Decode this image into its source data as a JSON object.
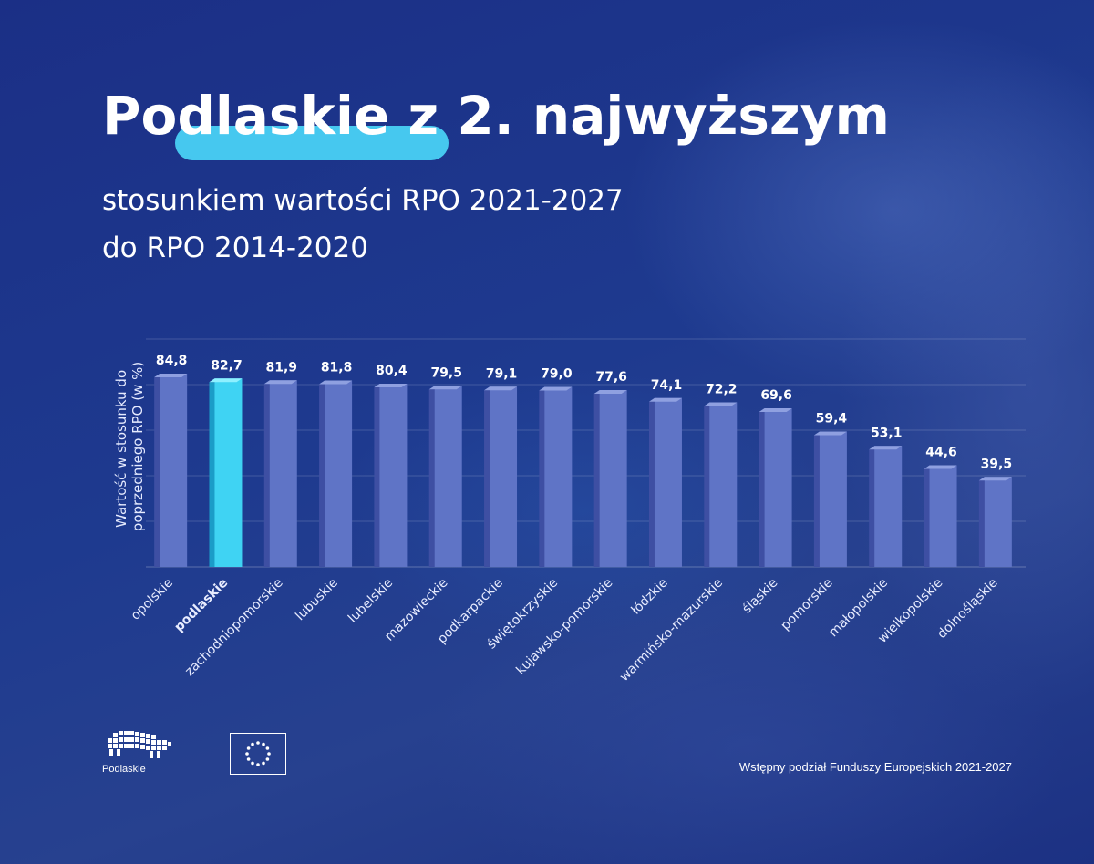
{
  "header": {
    "title": "Podlaskie z 2. najwyższym",
    "subtitle_line1": "stosunkiem wartości RPO 2021-2027",
    "subtitle_line2": "do RPO 2014-2020"
  },
  "colors": {
    "bar": "#5f74c6",
    "bar_highlight": "#3fd3f3",
    "title_highlight": "#46c8ef"
  },
  "chart_data": {
    "type": "bar",
    "title": "Podlaskie z 2. najwyższym stosunkiem wartości RPO 2021-2027 do RPO 2014-2020",
    "ylabel": "Wartość w stosunku do poprzedniego RPO (w %)",
    "xlabel": "",
    "ylim": [
      0,
      100
    ],
    "grid": true,
    "highlight_category": "podlaskie",
    "categories": [
      "opolskie",
      "podlaskie",
      "zachodniopomorskie",
      "lubuskie",
      "lubelskie",
      "mazowieckie",
      "podkarpackie",
      "świętokrzyskie",
      "kujawsko-pomorskie",
      "łódzkie",
      "warmińsko-mazurskie",
      "śląskie",
      "pomorskie",
      "małopolskie",
      "wielkopolskie",
      "dolnośląskie"
    ],
    "values": [
      84.8,
      82.7,
      81.9,
      81.8,
      80.4,
      79.5,
      79.1,
      79.0,
      77.6,
      74.1,
      72.2,
      69.6,
      59.4,
      53.1,
      44.6,
      39.5
    ],
    "value_labels": [
      "84,8",
      "82,7",
      "81,9",
      "81,8",
      "80,4",
      "79,5",
      "79,1",
      "79,0",
      "77,6",
      "74,1",
      "72,2",
      "69,6",
      "59,4",
      "53,1",
      "44,6",
      "39,5"
    ]
  },
  "footer": {
    "logo_text": "Podlaskie",
    "eu_flag_icon": "eu-flag-icon",
    "source_note": "Wstępny podział Funduszy Europejskich 2021-2027"
  }
}
